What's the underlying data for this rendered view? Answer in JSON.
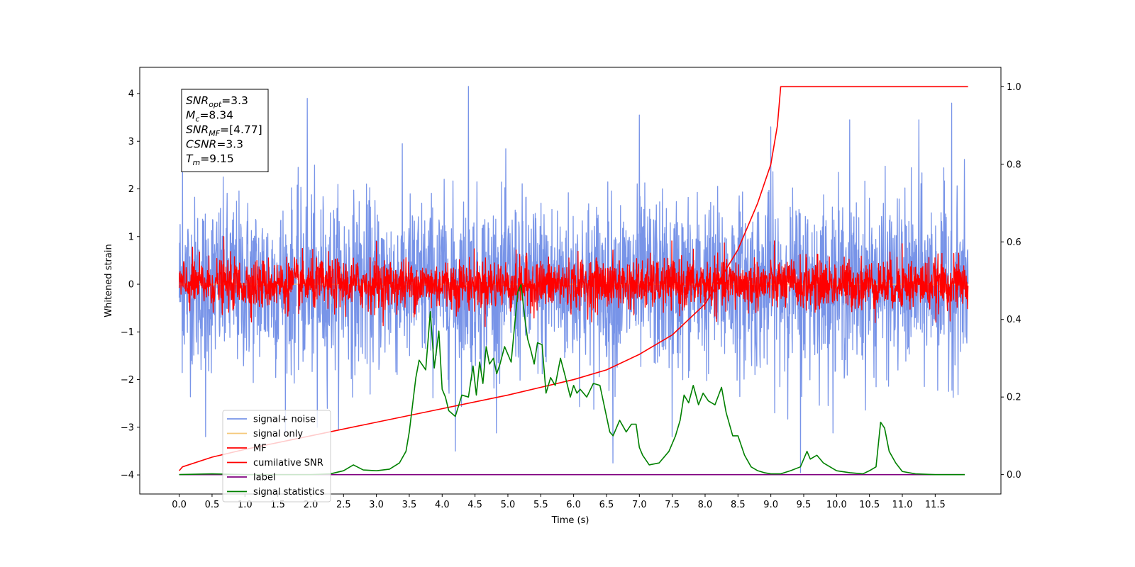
{
  "chart_data": {
    "type": "line",
    "title": "",
    "xlabel": "Time (s)",
    "ylabel": "Whitened strain",
    "xlim": [
      -0.6,
      12.5
    ],
    "ylim": [
      -4.4,
      4.55
    ],
    "y2lim": [
      -0.05,
      1.05
    ],
    "x_ticks": [
      0.0,
      0.5,
      1.0,
      1.5,
      2.0,
      2.5,
      3.0,
      3.5,
      4.0,
      4.5,
      5.0,
      5.5,
      6.0,
      6.5,
      7.0,
      7.5,
      8.0,
      8.5,
      9.0,
      9.5,
      10.0,
      10.5,
      11.0,
      11.5
    ],
    "x_tick_labels": [
      "0.0",
      "0.5",
      "1.0",
      "1.5",
      "2.0",
      "2.5",
      "3.0",
      "3.5",
      "4.0",
      "4.5",
      "5.0",
      "5.5",
      "6.0",
      "6.5",
      "7.0",
      "7.5",
      "8.0",
      "8.5",
      "9.0",
      "9.5",
      "10.0",
      "10.5",
      "11.0",
      "11.5"
    ],
    "y_ticks": [
      4,
      3,
      2,
      1,
      0,
      -1,
      -2,
      -3,
      -4
    ],
    "y_tick_labels": [
      "4",
      "3",
      "2",
      "1",
      "0",
      "−1",
      "−2",
      "−3",
      "−4"
    ],
    "y2_ticks": [
      1.0,
      0.8,
      0.6,
      0.4,
      0.2,
      0.0
    ],
    "y2_tick_labels": [
      "1.0",
      "0.8",
      "0.6",
      "0.4",
      "0.2",
      "0.0"
    ],
    "grid": false,
    "legend_position": "bottom-left",
    "info_box": {
      "lines": [
        {
          "main": "SNR",
          "sub": "opt",
          "rest": "=3.3"
        },
        {
          "main": "M",
          "sub": "c",
          "rest": "=8.34"
        },
        {
          "main": "SNR",
          "sub": "MF",
          "rest": "=[4.77]"
        },
        {
          "main": "CSNR",
          "sub": "",
          "rest": "=3.3"
        },
        {
          "main": "T",
          "sub": "m",
          "rest": "=9.15"
        }
      ]
    },
    "series": [
      {
        "name": "signal+ noise",
        "axis": "left",
        "color": "#7894e8",
        "style": "noise",
        "x_range": [
          0.0,
          12.0
        ],
        "amplitude_typical": 1.2,
        "peaks_up": [
          [
            0.05,
            2.8
          ],
          [
            1.95,
            3.9
          ],
          [
            4.4,
            4.15
          ],
          [
            7.0,
            3.55
          ],
          [
            9.0,
            3.3
          ],
          [
            10.2,
            3.45
          ],
          [
            11.25,
            3.45
          ],
          [
            11.75,
            3.8
          ]
        ],
        "peaks_down": [
          [
            0.4,
            -3.2
          ],
          [
            2.1,
            -3.0
          ],
          [
            4.2,
            -3.5
          ],
          [
            6.6,
            -3.75
          ],
          [
            7.5,
            -3.2
          ],
          [
            9.45,
            -3.95
          ]
        ]
      },
      {
        "name": "signal only",
        "axis": "left",
        "color": "#f5c97a",
        "style": "flat",
        "x": [
          0.0,
          12.0
        ],
        "y": [
          0.0,
          0.0
        ]
      },
      {
        "name": "MF",
        "axis": "left",
        "color": "#ff0000",
        "style": "noise",
        "x_range": [
          0.0,
          12.0
        ],
        "amplitude_typical": 0.35,
        "peaks_up": [
          [
            0.68,
            1.0
          ],
          [
            3.0,
            0.9
          ],
          [
            11.0,
            0.85
          ]
        ],
        "peaks_down": []
      },
      {
        "name": "cumilative SNR",
        "axis": "right",
        "color": "#ff0000",
        "style": "line",
        "x": [
          0.0,
          0.05,
          0.5,
          1.0,
          2.0,
          3.0,
          4.0,
          5.0,
          6.0,
          6.5,
          7.0,
          7.5,
          8.0,
          8.5,
          8.8,
          9.0,
          9.1,
          9.15,
          12.0
        ],
        "y": [
          0.01,
          0.02,
          0.045,
          0.065,
          0.1,
          0.135,
          0.17,
          0.205,
          0.245,
          0.27,
          0.31,
          0.36,
          0.44,
          0.58,
          0.7,
          0.8,
          0.9,
          1.0,
          1.0
        ]
      },
      {
        "name": "label",
        "axis": "right",
        "color": "#800080",
        "style": "line",
        "x": [
          0.0,
          11.95
        ],
        "y": [
          0.0,
          0.0
        ]
      },
      {
        "name": "signal statistics",
        "axis": "right",
        "color": "#008000",
        "style": "line",
        "x": [
          0.0,
          0.5,
          1.0,
          1.5,
          2.0,
          2.3,
          2.5,
          2.65,
          2.8,
          3.0,
          3.2,
          3.35,
          3.45,
          3.5,
          3.55,
          3.6,
          3.65,
          3.75,
          3.82,
          3.88,
          3.95,
          4.0,
          4.05,
          4.1,
          4.2,
          4.3,
          4.4,
          4.47,
          4.52,
          4.57,
          4.62,
          4.67,
          4.72,
          4.78,
          4.83,
          4.88,
          4.95,
          5.05,
          5.15,
          5.2,
          5.26,
          5.3,
          5.35,
          5.4,
          5.45,
          5.52,
          5.58,
          5.65,
          5.72,
          5.8,
          5.87,
          5.95,
          6.0,
          6.05,
          6.1,
          6.2,
          6.3,
          6.4,
          6.5,
          6.55,
          6.6,
          6.7,
          6.8,
          6.88,
          6.95,
          7.0,
          7.05,
          7.15,
          7.3,
          7.45,
          7.55,
          7.62,
          7.68,
          7.75,
          7.82,
          7.9,
          7.97,
          8.05,
          8.15,
          8.25,
          8.32,
          8.42,
          8.5,
          8.6,
          8.7,
          8.8,
          8.9,
          9.0,
          9.15,
          9.3,
          9.45,
          9.55,
          9.6,
          9.7,
          9.8,
          9.9,
          10.0,
          10.2,
          10.4,
          10.5,
          10.6,
          10.67,
          10.73,
          10.8,
          10.9,
          11.0,
          11.2,
          11.5,
          11.95
        ],
        "y": [
          0.0,
          0.002,
          0.0,
          0.0,
          0.0,
          0.002,
          0.01,
          0.025,
          0.012,
          0.01,
          0.014,
          0.03,
          0.06,
          0.11,
          0.18,
          0.25,
          0.295,
          0.27,
          0.42,
          0.275,
          0.37,
          0.22,
          0.2,
          0.165,
          0.15,
          0.205,
          0.2,
          0.28,
          0.205,
          0.29,
          0.235,
          0.33,
          0.285,
          0.3,
          0.26,
          0.285,
          0.33,
          0.29,
          0.47,
          0.49,
          0.4,
          0.35,
          0.32,
          0.285,
          0.34,
          0.335,
          0.21,
          0.25,
          0.23,
          0.3,
          0.255,
          0.2,
          0.23,
          0.21,
          0.22,
          0.2,
          0.235,
          0.23,
          0.15,
          0.11,
          0.1,
          0.14,
          0.11,
          0.13,
          0.13,
          0.07,
          0.05,
          0.025,
          0.03,
          0.06,
          0.1,
          0.14,
          0.205,
          0.185,
          0.23,
          0.18,
          0.21,
          0.19,
          0.18,
          0.225,
          0.16,
          0.1,
          0.1,
          0.05,
          0.02,
          0.01,
          0.005,
          0.002,
          0.002,
          0.01,
          0.02,
          0.06,
          0.04,
          0.05,
          0.03,
          0.02,
          0.01,
          0.005,
          0.002,
          0.01,
          0.02,
          0.135,
          0.12,
          0.06,
          0.03,
          0.008,
          0.002,
          0.0,
          0.0
        ]
      }
    ]
  }
}
